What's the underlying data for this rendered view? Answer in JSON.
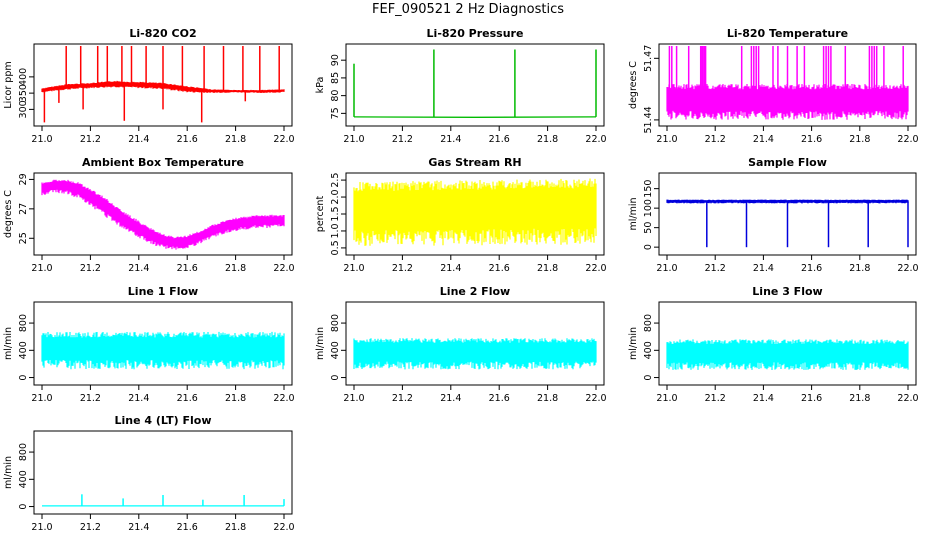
{
  "title": "FEF_090521  2 Hz Diagnostics",
  "colors": {
    "red": "#ff0000",
    "green": "#00bb00",
    "magenta": "#ff00ff",
    "yellow": "#ffff00",
    "blue": "#0000dd",
    "cyan": "#00ffff"
  },
  "chart_data": [
    {
      "type": "line",
      "title": "Li-820 CO2",
      "ylabel": "Licor ppm",
      "color": "#ff0000",
      "xlim": [
        21.0,
        22.0
      ],
      "ylim": [
        255,
        495
      ],
      "xticks": [
        "21.0",
        "21.2",
        "21.4",
        "21.6",
        "21.8",
        "22.0"
      ],
      "yticks": [
        "300",
        "350",
        "400"
      ],
      "series": [
        {
          "style": "band",
          "x": [
            21.0,
            21.1,
            21.2,
            21.3,
            21.4,
            21.5,
            21.6,
            21.7,
            21.8,
            21.9,
            22.0
          ],
          "low": [
            352,
            360,
            365,
            368,
            365,
            362,
            352,
            350,
            352,
            350,
            352
          ],
          "high": [
            365,
            378,
            382,
            388,
            385,
            382,
            372,
            362,
            360,
            360,
            362
          ]
        }
      ],
      "spikes": [
        {
          "x": 21.1,
          "y": 495
        },
        {
          "x": 21.16,
          "y": 495
        },
        {
          "x": 21.23,
          "y": 495
        },
        {
          "x": 21.27,
          "y": 495
        },
        {
          "x": 21.33,
          "y": 495
        },
        {
          "x": 21.37,
          "y": 495
        },
        {
          "x": 21.43,
          "y": 495
        },
        {
          "x": 21.5,
          "y": 495
        },
        {
          "x": 21.58,
          "y": 495
        },
        {
          "x": 21.67,
          "y": 495
        },
        {
          "x": 21.75,
          "y": 495
        },
        {
          "x": 21.83,
          "y": 495
        },
        {
          "x": 21.9,
          "y": 495
        },
        {
          "x": 21.98,
          "y": 495
        },
        {
          "x": 21.01,
          "y": 260
        },
        {
          "x": 21.07,
          "y": 320
        },
        {
          "x": 21.17,
          "y": 300
        },
        {
          "x": 21.34,
          "y": 265
        },
        {
          "x": 21.5,
          "y": 300
        },
        {
          "x": 21.66,
          "y": 260
        },
        {
          "x": 21.84,
          "y": 325
        }
      ]
    },
    {
      "type": "line",
      "title": "Li-820 Pressure",
      "ylabel": "kPa",
      "color": "#00bb00",
      "xlim": [
        21.0,
        22.0
      ],
      "ylim": [
        72,
        94
      ],
      "xticks": [
        "21.0",
        "21.2",
        "21.4",
        "21.6",
        "21.8",
        "22.0"
      ],
      "yticks": [
        "75",
        "80",
        "85",
        "90"
      ],
      "series": [
        {
          "style": "line",
          "x": [
            21.0,
            21.5,
            22.0
          ],
          "y": [
            74,
            73.9,
            74
          ]
        }
      ],
      "spikes": [
        {
          "x": 21.0,
          "y": 89
        },
        {
          "x": 21.33,
          "y": 93
        },
        {
          "x": 21.665,
          "y": 93
        },
        {
          "x": 22.0,
          "y": 93
        }
      ]
    },
    {
      "type": "bar",
      "title": "Li-820 Temperature",
      "ylabel": "degrees C",
      "color": "#ff00ff",
      "xlim": [
        21.0,
        22.0
      ],
      "ylim": [
        51.438,
        51.476
      ],
      "xticks": [
        "21.0",
        "21.2",
        "21.4",
        "21.6",
        "21.8",
        "22.0"
      ],
      "yticks": [
        "51.44",
        "51.47"
      ],
      "series": [
        {
          "style": "band",
          "x": [
            21.0,
            22.0
          ],
          "low": [
            51.44,
            51.44
          ],
          "high": [
            51.4575,
            51.4575
          ]
        }
      ],
      "spikes": [
        {
          "x": 21.01,
          "y": 51.476
        },
        {
          "x": 21.02,
          "y": 51.476
        },
        {
          "x": 21.04,
          "y": 51.476
        },
        {
          "x": 21.09,
          "y": 51.476
        },
        {
          "x": 21.14,
          "y": 51.476
        },
        {
          "x": 21.145,
          "y": 51.476
        },
        {
          "x": 21.15,
          "y": 51.476
        },
        {
          "x": 21.155,
          "y": 51.476
        },
        {
          "x": 21.16,
          "y": 51.476
        },
        {
          "x": 21.31,
          "y": 51.476
        },
        {
          "x": 21.35,
          "y": 51.476
        },
        {
          "x": 21.36,
          "y": 51.476
        },
        {
          "x": 21.37,
          "y": 51.476
        },
        {
          "x": 21.38,
          "y": 51.476
        },
        {
          "x": 21.44,
          "y": 51.476
        },
        {
          "x": 21.46,
          "y": 51.476
        },
        {
          "x": 21.5,
          "y": 51.476
        },
        {
          "x": 21.54,
          "y": 51.476
        },
        {
          "x": 21.57,
          "y": 51.476
        },
        {
          "x": 21.65,
          "y": 51.476
        },
        {
          "x": 21.66,
          "y": 51.476
        },
        {
          "x": 21.67,
          "y": 51.476
        },
        {
          "x": 21.68,
          "y": 51.476
        },
        {
          "x": 21.74,
          "y": 51.476
        },
        {
          "x": 21.84,
          "y": 51.476
        },
        {
          "x": 21.85,
          "y": 51.476
        },
        {
          "x": 21.86,
          "y": 51.476
        },
        {
          "x": 21.87,
          "y": 51.476
        },
        {
          "x": 21.9,
          "y": 51.476
        },
        {
          "x": 21.98,
          "y": 51.476
        }
      ]
    },
    {
      "type": "area",
      "title": "Ambient Box Temperature",
      "ylabel": "degrees C",
      "color": "#ff00ff",
      "xlim": [
        21.0,
        22.0
      ],
      "ylim": [
        24.0,
        29.3
      ],
      "xticks": [
        "21.0",
        "21.2",
        "21.4",
        "21.6",
        "21.8",
        "22.0"
      ],
      "yticks": [
        "25",
        "27",
        "29"
      ],
      "series": [
        {
          "style": "band",
          "x": [
            21.0,
            21.05,
            21.1,
            21.15,
            21.2,
            21.25,
            21.3,
            21.35,
            21.4,
            21.45,
            21.5,
            21.55,
            21.6,
            21.65,
            21.7,
            21.75,
            21.8,
            21.85,
            21.9,
            21.95,
            22.0
          ],
          "low": [
            27.9,
            28.1,
            28.0,
            27.7,
            27.2,
            26.6,
            26.0,
            25.5,
            25.0,
            24.6,
            24.3,
            24.2,
            24.3,
            24.6,
            25.0,
            25.3,
            25.5,
            25.6,
            25.7,
            25.7,
            25.8
          ],
          "high": [
            28.8,
            29.0,
            29.0,
            28.8,
            28.4,
            27.9,
            27.3,
            26.7,
            26.2,
            25.7,
            25.3,
            25.1,
            25.2,
            25.5,
            25.9,
            26.2,
            26.4,
            26.5,
            26.6,
            26.6,
            26.6
          ]
        }
      ],
      "spikes": []
    },
    {
      "type": "area",
      "title": "Gas Stream RH",
      "ylabel": "percent",
      "color": "#ffff00",
      "xlim": [
        21.0,
        22.0
      ],
      "ylim": [
        0.35,
        2.65
      ],
      "xticks": [
        "21.0",
        "21.2",
        "21.4",
        "21.6",
        "21.8",
        "22.0"
      ],
      "yticks": [
        "0.5",
        "1.0",
        "1.5",
        "2.0",
        "2.5"
      ],
      "series": [
        {
          "style": "band",
          "x": [
            21.0,
            22.0
          ],
          "low": [
            0.55,
            0.6
          ],
          "high": [
            2.45,
            2.55
          ]
        }
      ],
      "spikes": []
    },
    {
      "type": "line",
      "title": "Sample Flow",
      "ylabel": "ml/min",
      "color": "#0000dd",
      "xlim": [
        21.0,
        22.0
      ],
      "ylim": [
        -15,
        185
      ],
      "xticks": [
        "21.0",
        "21.2",
        "21.4",
        "21.6",
        "21.8",
        "22.0"
      ],
      "yticks": [
        "0",
        "50",
        "100",
        "150"
      ],
      "series": [
        {
          "style": "band",
          "x": [
            21.0,
            22.0
          ],
          "low": [
            112,
            112
          ],
          "high": [
            122,
            122
          ]
        }
      ],
      "spikes": [
        {
          "x": 21.165,
          "y": 0
        },
        {
          "x": 21.33,
          "y": 0
        },
        {
          "x": 21.5,
          "y": 0
        },
        {
          "x": 21.67,
          "y": 0
        },
        {
          "x": 21.835,
          "y": 0
        },
        {
          "x": 22.0,
          "y": 0
        }
      ]
    },
    {
      "type": "area",
      "title": "Line 1 Flow",
      "ylabel": "ml/min",
      "color": "#00ffff",
      "xlim": [
        21.0,
        22.0
      ],
      "ylim": [
        -80,
        1080
      ],
      "xticks": [
        "21.0",
        "21.2",
        "21.4",
        "21.6",
        "21.8",
        "22.0"
      ],
      "yticks": [
        "0",
        "400",
        "800"
      ],
      "series": [
        {
          "style": "band",
          "x": [
            21.0,
            22.0
          ],
          "low": [
            120,
            120
          ],
          "high": [
            670,
            670
          ]
        }
      ],
      "spikes": []
    },
    {
      "type": "area",
      "title": "Line 2 Flow",
      "ylabel": "ml/min",
      "color": "#00ffff",
      "xlim": [
        21.0,
        22.0
      ],
      "ylim": [
        -80,
        1080
      ],
      "xticks": [
        "21.0",
        "21.2",
        "21.4",
        "21.6",
        "21.8",
        "22.0"
      ],
      "yticks": [
        "0",
        "400",
        "800"
      ],
      "series": [
        {
          "style": "band",
          "x": [
            21.0,
            22.0
          ],
          "low": [
            120,
            120
          ],
          "high": [
            580,
            580
          ]
        }
      ],
      "spikes": []
    },
    {
      "type": "area",
      "title": "Line 3 Flow",
      "ylabel": "ml/min",
      "color": "#00ffff",
      "xlim": [
        21.0,
        22.0
      ],
      "ylim": [
        -80,
        1080
      ],
      "xticks": [
        "21.0",
        "21.2",
        "21.4",
        "21.6",
        "21.8",
        "22.0"
      ],
      "yticks": [
        "0",
        "400",
        "800"
      ],
      "series": [
        {
          "style": "band",
          "x": [
            21.0,
            22.0
          ],
          "low": [
            110,
            110
          ],
          "high": [
            560,
            560
          ]
        }
      ],
      "spikes": []
    },
    {
      "type": "line",
      "title": "Line 4 (LT) Flow",
      "ylabel": "ml/min",
      "color": "#00ffff",
      "xlim": [
        21.0,
        22.0
      ],
      "ylim": [
        -80,
        1080
      ],
      "xticks": [
        "21.0",
        "21.2",
        "21.4",
        "21.6",
        "21.8",
        "22.0"
      ],
      "yticks": [
        "0",
        "400",
        "800"
      ],
      "series": [
        {
          "style": "line",
          "x": [
            21.0,
            22.0
          ],
          "y": [
            10,
            10
          ]
        }
      ],
      "spikes": [
        {
          "x": 21.165,
          "y": 180
        },
        {
          "x": 21.335,
          "y": 120
        },
        {
          "x": 21.5,
          "y": 170
        },
        {
          "x": 21.665,
          "y": 100
        },
        {
          "x": 21.835,
          "y": 170
        },
        {
          "x": 22.0,
          "y": 110
        }
      ]
    }
  ]
}
